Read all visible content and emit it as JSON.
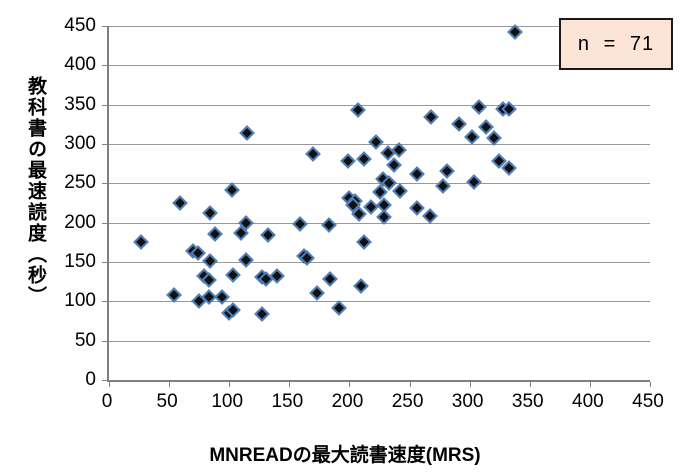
{
  "chart_data": {
    "type": "scatter",
    "title": "",
    "xlabel": "MNREADの最大読書速度(MRS)",
    "ylabel": "教科書の最速読度（秒）",
    "xlim": [
      0,
      450
    ],
    "ylim": [
      0,
      450
    ],
    "xticks": [
      0,
      50,
      100,
      150,
      200,
      250,
      300,
      350,
      400,
      450
    ],
    "yticks": [
      0,
      50,
      100,
      150,
      200,
      250,
      300,
      350,
      400,
      450
    ],
    "grid": "horizontal-only",
    "legend": {
      "label": "n = 71",
      "position": "top-right"
    },
    "n": 71,
    "marker": {
      "shape": "diamond"
    },
    "points": [
      [
        338,
        442
      ],
      [
        207,
        343
      ],
      [
        308,
        347
      ],
      [
        328,
        345
      ],
      [
        333,
        344
      ],
      [
        268,
        334
      ],
      [
        291,
        326
      ],
      [
        314,
        321
      ],
      [
        115,
        314
      ],
      [
        302,
        309
      ],
      [
        320,
        307
      ],
      [
        222,
        302
      ],
      [
        241,
        293
      ],
      [
        232,
        289
      ],
      [
        170,
        287
      ],
      [
        199,
        279
      ],
      [
        212,
        281
      ],
      [
        324,
        278
      ],
      [
        237,
        273
      ],
      [
        333,
        269
      ],
      [
        281,
        266
      ],
      [
        256,
        262
      ],
      [
        228,
        256
      ],
      [
        233,
        251
      ],
      [
        278,
        247
      ],
      [
        304,
        252
      ],
      [
        225,
        239
      ],
      [
        242,
        240
      ],
      [
        102,
        242
      ],
      [
        200,
        231
      ],
      [
        205,
        228
      ],
      [
        203,
        222
      ],
      [
        218,
        220
      ],
      [
        229,
        222
      ],
      [
        229,
        207
      ],
      [
        208,
        211
      ],
      [
        256,
        219
      ],
      [
        267,
        209
      ],
      [
        59,
        225
      ],
      [
        84,
        212
      ],
      [
        114,
        200
      ],
      [
        159,
        198
      ],
      [
        183,
        197
      ],
      [
        110,
        187
      ],
      [
        88,
        186
      ],
      [
        132,
        184
      ],
      [
        27,
        176
      ],
      [
        212,
        176
      ],
      [
        70,
        164
      ],
      [
        74,
        161
      ],
      [
        162,
        158
      ],
      [
        165,
        155
      ],
      [
        84,
        151
      ],
      [
        114,
        152
      ],
      [
        54,
        108
      ],
      [
        79,
        132
      ],
      [
        83,
        127
      ],
      [
        103,
        133
      ],
      [
        127,
        131
      ],
      [
        131,
        129
      ],
      [
        140,
        132
      ],
      [
        75,
        100
      ],
      [
        83,
        105
      ],
      [
        94,
        105
      ],
      [
        100,
        85
      ],
      [
        103,
        89
      ],
      [
        127,
        84
      ],
      [
        184,
        128
      ],
      [
        173,
        110
      ],
      [
        210,
        120
      ],
      [
        191,
        91
      ]
    ]
  },
  "colors": {
    "marker_fill": "#111111",
    "marker_stroke": "#4f81bd",
    "gridline": "#979797",
    "axis": "#7f7f7f",
    "legend_fill": "#fce4d6",
    "legend_border": "#1a1a1a",
    "text": "#000000"
  }
}
